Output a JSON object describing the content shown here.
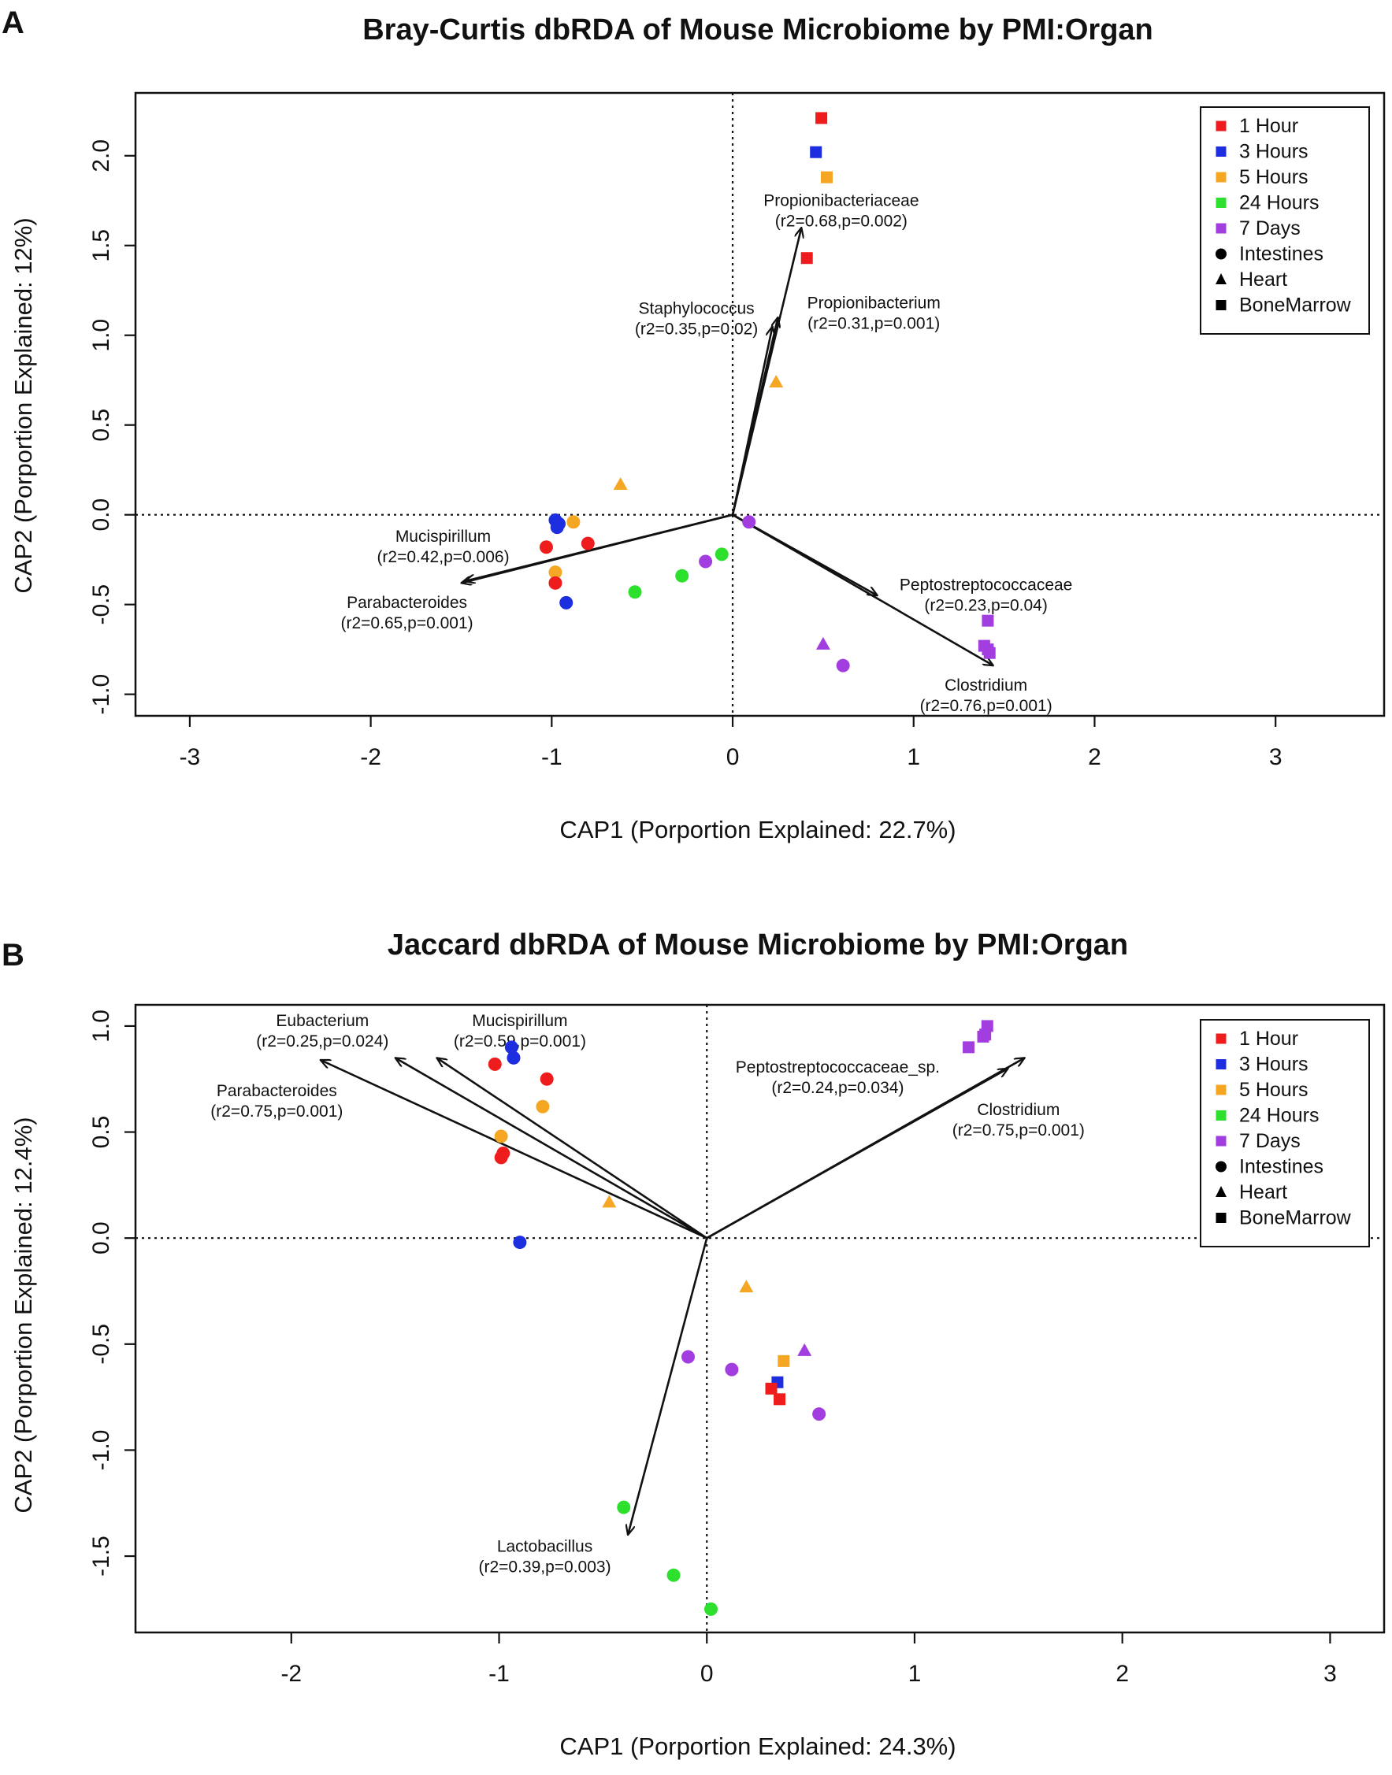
{
  "chart_data": [
    {
      "type": "scatter",
      "panel_label": "A",
      "title": "Bray-Curtis dbRDA of Mouse Microbiome by PMI:Organ",
      "xlabel": "CAP1 (Porportion Explained: 22.7%)",
      "ylabel": "CAP2 (Porportion Explained: 12%)",
      "xlim": [
        -3.3,
        3.6
      ],
      "ylim": [
        -1.12,
        2.35
      ],
      "xticks": [
        -3,
        -2,
        -1,
        0,
        1,
        2,
        3
      ],
      "yticks": [
        -1.0,
        -0.5,
        0.0,
        0.5,
        1.0,
        1.5,
        2.0
      ],
      "ytick_labels": [
        "-1.0",
        "-0.5",
        "0.0",
        "0.5",
        "1.0",
        "1.5",
        "2.0"
      ],
      "reference_lines": {
        "x": 0,
        "y": 0,
        "style": "dotted"
      },
      "legend": {
        "position": "top-right",
        "groups": [
          {
            "label": "1 Hour",
            "color": "#ee1c1c",
            "shape": "square-color"
          },
          {
            "label": "3 Hours",
            "color": "#1c2ee0",
            "shape": "square-color"
          },
          {
            "label": "5 Hours",
            "color": "#f5a623",
            "shape": "square-color"
          },
          {
            "label": "24 Hours",
            "color": "#2ee02e",
            "shape": "square-color"
          },
          {
            "label": "7 Days",
            "color": "#a23ee0",
            "shape": "square-color"
          },
          {
            "label": "Intestines",
            "color": "#000000",
            "shape": "circle"
          },
          {
            "label": "Heart",
            "color": "#000000",
            "shape": "triangle"
          },
          {
            "label": "BoneMarrow",
            "color": "#000000",
            "shape": "square"
          }
        ]
      },
      "vectors": [
        {
          "name": "Propionibacteriaceae",
          "stat": "(r2=0.68,p=0.002)",
          "x": 0.38,
          "y": 1.6,
          "label_x": 0.6,
          "label_y": 1.72
        },
        {
          "name": "Propionibacterium",
          "stat": "(r2=0.31,p=0.001)",
          "x": 0.25,
          "y": 1.1,
          "label_x": 0.78,
          "label_y": 1.15
        },
        {
          "name": "Staphylococcus",
          "stat": "(r2=0.35,p=0.02)",
          "x": 0.22,
          "y": 1.05,
          "label_x": -0.2,
          "label_y": 1.12
        },
        {
          "name": "Mucispirillum",
          "stat": "(r2=0.42,p=0.006)",
          "x": -1.48,
          "y": -0.37,
          "label_x": -1.6,
          "label_y": -0.15
        },
        {
          "name": "Parabacteroides",
          "stat": "(r2=0.65,p=0.001)",
          "x": -1.5,
          "y": -0.38,
          "label_x": -1.8,
          "label_y": -0.52
        },
        {
          "name": "Peptostreptococcaceae",
          "stat": "(r2=0.23,p=0.04)",
          "x": 0.8,
          "y": -0.45,
          "label_x": 1.4,
          "label_y": -0.42
        },
        {
          "name": "Clostridium",
          "stat": "(r2=0.76,p=0.001)",
          "x": 1.44,
          "y": -0.84,
          "label_x": 1.4,
          "label_y": -0.98
        }
      ],
      "points": [
        {
          "group": "1 Hour",
          "organ": "BoneMarrow",
          "x": 0.49,
          "y": 2.21
        },
        {
          "group": "3 Hours",
          "organ": "BoneMarrow",
          "x": 0.46,
          "y": 2.02
        },
        {
          "group": "5 Hours",
          "organ": "BoneMarrow",
          "x": 0.52,
          "y": 1.88
        },
        {
          "group": "1 Hour",
          "organ": "BoneMarrow",
          "x": 0.41,
          "y": 1.43
        },
        {
          "group": "5 Hours",
          "organ": "Heart",
          "x": 0.24,
          "y": 0.74
        },
        {
          "group": "5 Hours",
          "organ": "Heart",
          "x": -0.62,
          "y": 0.17
        },
        {
          "group": "3 Hours",
          "organ": "Intestines",
          "x": -0.98,
          "y": -0.03
        },
        {
          "group": "3 Hours",
          "organ": "Intestines",
          "x": -0.96,
          "y": -0.05
        },
        {
          "group": "3 Hours",
          "organ": "Intestines",
          "x": -0.97,
          "y": -0.07
        },
        {
          "group": "5 Hours",
          "organ": "Intestines",
          "x": -0.88,
          "y": -0.04
        },
        {
          "group": "1 Hour",
          "organ": "Intestines",
          "x": -0.8,
          "y": -0.16
        },
        {
          "group": "1 Hour",
          "organ": "Intestines",
          "x": -1.03,
          "y": -0.18
        },
        {
          "group": "5 Hours",
          "organ": "Intestines",
          "x": -0.98,
          "y": -0.32
        },
        {
          "group": "1 Hour",
          "organ": "Intestines",
          "x": -0.98,
          "y": -0.38
        },
        {
          "group": "3 Hours",
          "organ": "Intestines",
          "x": -0.92,
          "y": -0.49
        },
        {
          "group": "24 Hours",
          "organ": "Intestines",
          "x": -0.54,
          "y": -0.43
        },
        {
          "group": "24 Hours",
          "organ": "Intestines",
          "x": -0.28,
          "y": -0.34
        },
        {
          "group": "24 Hours",
          "organ": "Intestines",
          "x": -0.06,
          "y": -0.22
        },
        {
          "group": "7 Days",
          "organ": "Intestines",
          "x": -0.15,
          "y": -0.26
        },
        {
          "group": "7 Days",
          "organ": "Intestines",
          "x": 0.09,
          "y": -0.04
        },
        {
          "group": "7 Days",
          "organ": "BoneMarrow",
          "x": 1.41,
          "y": -0.59
        },
        {
          "group": "7 Days",
          "organ": "BoneMarrow",
          "x": 1.39,
          "y": -0.73
        },
        {
          "group": "7 Days",
          "organ": "BoneMarrow",
          "x": 1.41,
          "y": -0.75
        },
        {
          "group": "7 Days",
          "organ": "BoneMarrow",
          "x": 1.42,
          "y": -0.77
        },
        {
          "group": "7 Days",
          "organ": "Heart",
          "x": 0.5,
          "y": -0.72
        },
        {
          "group": "7 Days",
          "organ": "Intestines",
          "x": 0.61,
          "y": -0.84
        }
      ]
    },
    {
      "type": "scatter",
      "panel_label": "B",
      "title": "Jaccard dbRDA of Mouse Microbiome by PMI:Organ",
      "xlabel": "CAP1 (Porportion Explained: 24.3%)",
      "ylabel": "CAP2 (Porportion Explained: 12.4%)",
      "xlim": [
        -2.75,
        3.26
      ],
      "ylim": [
        -1.86,
        1.1
      ],
      "xticks": [
        -2,
        -1,
        0,
        1,
        2,
        3
      ],
      "yticks": [
        -1.5,
        -1.0,
        -0.5,
        0.0,
        0.5,
        1.0
      ],
      "ytick_labels": [
        "-1.5",
        "-1.0",
        "-0.5",
        "0.0",
        "0.5",
        "1.0"
      ],
      "reference_lines": {
        "x": 0,
        "y": 0,
        "style": "dotted"
      },
      "legend": {
        "position": "top-right",
        "groups": [
          {
            "label": "1 Hour",
            "color": "#ee1c1c",
            "shape": "square-color"
          },
          {
            "label": "3 Hours",
            "color": "#1c2ee0",
            "shape": "square-color"
          },
          {
            "label": "5 Hours",
            "color": "#f5a623",
            "shape": "square-color"
          },
          {
            "label": "24 Hours",
            "color": "#2ee02e",
            "shape": "square-color"
          },
          {
            "label": "7 Days",
            "color": "#a23ee0",
            "shape": "square-color"
          },
          {
            "label": "Intestines",
            "color": "#000000",
            "shape": "circle"
          },
          {
            "label": "Heart",
            "color": "#000000",
            "shape": "triangle"
          },
          {
            "label": "BoneMarrow",
            "color": "#000000",
            "shape": "square"
          }
        ]
      },
      "vectors": [
        {
          "name": "Eubacterium",
          "stat": "(r2=0.25,p=0.024)",
          "x": -1.5,
          "y": 0.85,
          "label_x": -1.85,
          "label_y": 1.0
        },
        {
          "name": "Mucispirillum",
          "stat": "(r2=0.59,p=0.001)",
          "x": -1.3,
          "y": 0.85,
          "label_x": -0.9,
          "label_y": 1.0
        },
        {
          "name": "Parabacteroides",
          "stat": "(r2=0.75,p=0.001)",
          "x": -1.86,
          "y": 0.84,
          "label_x": -2.07,
          "label_y": 0.67
        },
        {
          "name": "Peptostreptococcaceae_sp.",
          "stat": "(r2=0.24,p=0.034)",
          "x": 1.53,
          "y": 0.85,
          "label_x": 0.63,
          "label_y": 0.78
        },
        {
          "name": "Clostridium",
          "stat": "(r2=0.75,p=0.001)",
          "x": 1.45,
          "y": 0.8,
          "label_x": 1.5,
          "label_y": 0.58
        },
        {
          "name": "Lactobacillus",
          "stat": "(r2=0.39,p=0.003)",
          "x": -0.38,
          "y": -1.4,
          "label_x": -0.78,
          "label_y": -1.48
        }
      ],
      "points": [
        {
          "group": "1 Hour",
          "organ": "Intestines",
          "x": -1.02,
          "y": 0.82
        },
        {
          "group": "1 Hour",
          "organ": "Intestines",
          "x": -0.77,
          "y": 0.75
        },
        {
          "group": "1 Hour",
          "organ": "Intestines",
          "x": -0.99,
          "y": 0.38
        },
        {
          "group": "1 Hour",
          "organ": "Intestines",
          "x": -0.98,
          "y": 0.4
        },
        {
          "group": "3 Hours",
          "organ": "Intestines",
          "x": -0.94,
          "y": 0.9
        },
        {
          "group": "3 Hours",
          "organ": "Intestines",
          "x": -0.93,
          "y": 0.85
        },
        {
          "group": "3 Hours",
          "organ": "Intestines",
          "x": -0.9,
          "y": -0.02
        },
        {
          "group": "5 Hours",
          "organ": "Intestines",
          "x": -0.79,
          "y": 0.62
        },
        {
          "group": "5 Hours",
          "organ": "Intestines",
          "x": -0.99,
          "y": 0.48
        },
        {
          "group": "5 Hours",
          "organ": "Heart",
          "x": -0.47,
          "y": 0.17
        },
        {
          "group": "5 Hours",
          "organ": "Heart",
          "x": 0.19,
          "y": -0.23
        },
        {
          "group": "5 Hours",
          "organ": "BoneMarrow",
          "x": 0.37,
          "y": -0.58
        },
        {
          "group": "3 Hours",
          "organ": "BoneMarrow",
          "x": 0.34,
          "y": -0.68
        },
        {
          "group": "1 Hour",
          "organ": "BoneMarrow",
          "x": 0.31,
          "y": -0.71
        },
        {
          "group": "1 Hour",
          "organ": "BoneMarrow",
          "x": 0.35,
          "y": -0.76
        },
        {
          "group": "7 Days",
          "organ": "Intestines",
          "x": -0.09,
          "y": -0.56
        },
        {
          "group": "7 Days",
          "organ": "Intestines",
          "x": 0.12,
          "y": -0.62
        },
        {
          "group": "7 Days",
          "organ": "Heart",
          "x": 0.47,
          "y": -0.53
        },
        {
          "group": "7 Days",
          "organ": "Intestines",
          "x": 0.54,
          "y": -0.83
        },
        {
          "group": "7 Days",
          "organ": "BoneMarrow",
          "x": 1.35,
          "y": 1.0
        },
        {
          "group": "7 Days",
          "organ": "BoneMarrow",
          "x": 1.34,
          "y": 0.96
        },
        {
          "group": "7 Days",
          "organ": "BoneMarrow",
          "x": 1.33,
          "y": 0.95
        },
        {
          "group": "7 Days",
          "organ": "BoneMarrow",
          "x": 1.26,
          "y": 0.9
        },
        {
          "group": "24 Hours",
          "organ": "Intestines",
          "x": -0.4,
          "y": -1.27
        },
        {
          "group": "24 Hours",
          "organ": "Intestines",
          "x": -0.16,
          "y": -1.59
        },
        {
          "group": "24 Hours",
          "organ": "Intestines",
          "x": 0.02,
          "y": -1.75
        }
      ]
    }
  ]
}
